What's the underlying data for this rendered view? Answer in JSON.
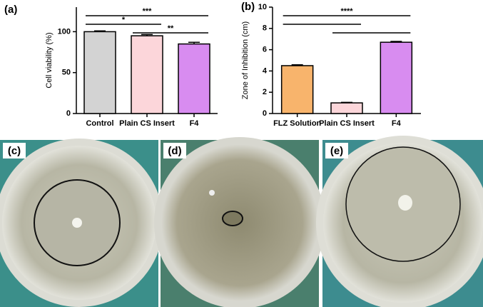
{
  "chart_data": [
    {
      "type": "bar",
      "title": "(a)",
      "y_label": "Cell viability (%)",
      "categories": [
        "Control",
        "Plain CS Insert",
        "F4"
      ],
      "values": [
        100,
        95,
        85
      ],
      "errors": [
        1,
        1.5,
        2
      ],
      "colors": [
        "#d3d3d3",
        "#fcd6da",
        "#d88cf0"
      ],
      "ylim": [
        0,
        130
      ],
      "yticks": [
        0,
        50,
        100
      ],
      "annotations": [
        {
          "text": "***",
          "from": "Control",
          "to": "F4"
        },
        {
          "text": "*",
          "from": "Control",
          "to": "Plain CS Insert"
        },
        {
          "text": "**",
          "from": "Plain CS Insert",
          "to": "F4"
        }
      ]
    },
    {
      "type": "bar",
      "title": "(b)",
      "y_label": "Zone of Inhibition (cm)",
      "categories": [
        "FLZ Solution",
        "Plain CS Insert",
        "F4"
      ],
      "values": [
        4.5,
        1.0,
        6.7
      ],
      "errors": [
        0.08,
        0.05,
        0.08
      ],
      "colors": [
        "#f8b46c",
        "#fcd6da",
        "#d88cf0"
      ],
      "ylim": [
        0,
        10
      ],
      "yticks": [
        0,
        2,
        4,
        6,
        8,
        10
      ],
      "annotations": [
        {
          "text": "****",
          "from": "FLZ Solution",
          "to": "F4"
        },
        {
          "from": "FLZ Solution",
          "to": "Plain CS Insert"
        },
        {
          "from": "Plain CS Insert",
          "to": "F4"
        }
      ]
    }
  ],
  "photo_panels": [
    {
      "label": "(c)"
    },
    {
      "label": "(d)"
    },
    {
      "label": "(e)"
    }
  ]
}
